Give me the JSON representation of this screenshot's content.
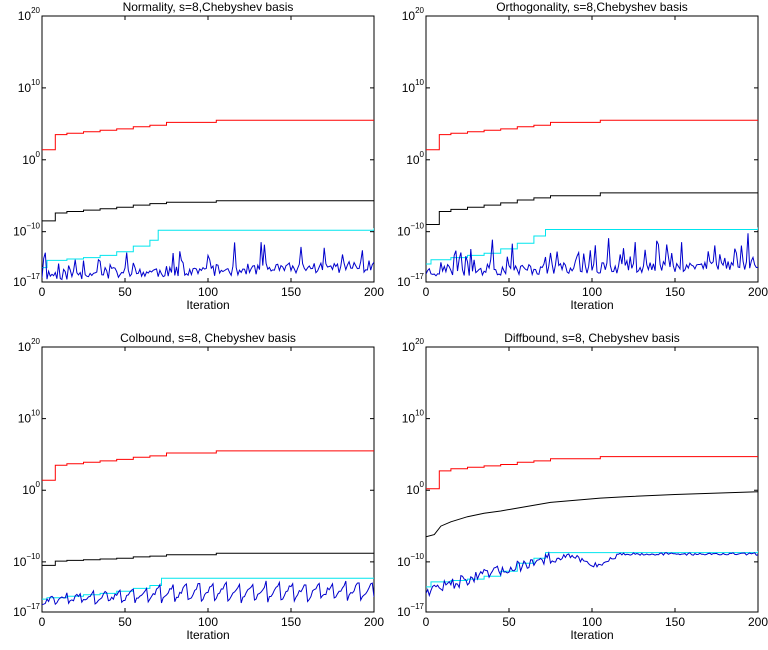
{
  "chart_data": [
    {
      "type": "line",
      "title": "Normality, s=8,Chebyshev basis",
      "xlabel": "Iteration",
      "ylabel": "",
      "xlim": [
        0,
        200
      ],
      "ylim_exponent": [
        -17,
        20
      ],
      "yscale": "log",
      "xticks": [
        "0",
        "50",
        "100",
        "150",
        "200"
      ],
      "yticks": [
        {
          "base": "10",
          "exp": "20"
        },
        {
          "base": "10",
          "exp": "10"
        },
        {
          "base": "10",
          "exp": "0"
        },
        {
          "base": "10",
          "exp": "−10"
        },
        {
          "base": "10",
          "exp": "−17"
        }
      ],
      "series": [
        {
          "color": "#ff0000",
          "style": "step",
          "points": [
            [
              0,
              1.4
            ],
            [
              8,
              1.4
            ],
            [
              8,
              3.5
            ],
            [
              15,
              3.7
            ],
            [
              25,
              3.9
            ],
            [
              35,
              4.1
            ],
            [
              45,
              4.3
            ],
            [
              55,
              4.6
            ],
            [
              65,
              4.8
            ],
            [
              75,
              5.2
            ],
            [
              90,
              5.2
            ],
            [
              105,
              5.5
            ],
            [
              200,
              5.5
            ]
          ]
        },
        {
          "color": "#000000",
          "style": "step",
          "points": [
            [
              0,
              -8.5
            ],
            [
              8,
              -8.5
            ],
            [
              8,
              -7.4
            ],
            [
              15,
              -7.2
            ],
            [
              25,
              -7.0
            ],
            [
              35,
              -6.8
            ],
            [
              45,
              -6.6
            ],
            [
              55,
              -6.3
            ],
            [
              65,
              -6.1
            ],
            [
              75,
              -5.9
            ],
            [
              90,
              -5.9
            ],
            [
              105,
              -5.7
            ],
            [
              200,
              -5.7
            ]
          ]
        },
        {
          "color": "#00e5ee",
          "style": "step",
          "points": [
            [
              0,
              -15.0
            ],
            [
              3,
              -14.0
            ],
            [
              15,
              -13.8
            ],
            [
              25,
              -13.6
            ],
            [
              35,
              -13.3
            ],
            [
              45,
              -12.8
            ],
            [
              55,
              -12.0
            ],
            [
              65,
              -11.2
            ],
            [
              70,
              -9.8
            ],
            [
              200,
              -9.5
            ]
          ]
        },
        {
          "color": "#0000cc",
          "style": "noisy",
          "seed": 11,
          "start": 0,
          "base_start": -16.0,
          "base_end": -14.8,
          "spike": 3.5,
          "spike_every": 6
        }
      ]
    },
    {
      "type": "line",
      "title": "Orthogonality, s=8,Chebyshev basis",
      "xlabel": "Iteration",
      "ylabel": "",
      "xlim": [
        0,
        200
      ],
      "ylim_exponent": [
        -17,
        20
      ],
      "yscale": "log",
      "xticks": [
        "0",
        "50",
        "100",
        "150",
        "200"
      ],
      "yticks": [
        {
          "base": "10",
          "exp": "20"
        },
        {
          "base": "10",
          "exp": "10"
        },
        {
          "base": "10",
          "exp": "0"
        },
        {
          "base": "10",
          "exp": "−10"
        },
        {
          "base": "10",
          "exp": "−17"
        }
      ],
      "series": [
        {
          "color": "#ff0000",
          "style": "step",
          "points": [
            [
              0,
              1.4
            ],
            [
              8,
              1.4
            ],
            [
              8,
              3.5
            ],
            [
              15,
              3.7
            ],
            [
              25,
              3.9
            ],
            [
              35,
              4.1
            ],
            [
              45,
              4.3
            ],
            [
              55,
              4.6
            ],
            [
              65,
              4.8
            ],
            [
              75,
              5.2
            ],
            [
              90,
              5.2
            ],
            [
              105,
              5.5
            ],
            [
              200,
              5.5
            ]
          ]
        },
        {
          "color": "#000000",
          "style": "step",
          "points": [
            [
              0,
              -9.0
            ],
            [
              8,
              -9.0
            ],
            [
              8,
              -7.2
            ],
            [
              15,
              -6.9
            ],
            [
              25,
              -6.6
            ],
            [
              35,
              -6.3
            ],
            [
              45,
              -6.0
            ],
            [
              55,
              -5.6
            ],
            [
              65,
              -5.3
            ],
            [
              75,
              -5.0
            ],
            [
              90,
              -5.0
            ],
            [
              105,
              -4.6
            ],
            [
              200,
              -4.6
            ]
          ]
        },
        {
          "color": "#00e5ee",
          "style": "step",
          "points": [
            [
              0,
              -14.5
            ],
            [
              3,
              -13.9
            ],
            [
              15,
              -13.6
            ],
            [
              25,
              -13.3
            ],
            [
              35,
              -13.0
            ],
            [
              45,
              -12.4
            ],
            [
              55,
              -11.6
            ],
            [
              65,
              -10.6
            ],
            [
              72,
              -9.7
            ],
            [
              200,
              -9.4
            ]
          ]
        },
        {
          "color": "#0000cc",
          "style": "noisy",
          "seed": 23,
          "start": 0,
          "base_start": -15.5,
          "base_end": -14.6,
          "spike": 3.8,
          "spike_every": 5
        }
      ]
    },
    {
      "type": "line",
      "title": "Colbound, s=8, Chebyshev basis",
      "xlabel": "Iteration",
      "ylabel": "",
      "xlim": [
        0,
        200
      ],
      "ylim_exponent": [
        -17,
        20
      ],
      "yscale": "log",
      "xticks": [
        "0",
        "50",
        "100",
        "150",
        "200"
      ],
      "yticks": [
        {
          "base": "10",
          "exp": "20"
        },
        {
          "base": "10",
          "exp": "10"
        },
        {
          "base": "10",
          "exp": "0"
        },
        {
          "base": "10",
          "exp": "−10"
        },
        {
          "base": "10",
          "exp": "−17"
        }
      ],
      "series": [
        {
          "color": "#ff0000",
          "style": "step",
          "points": [
            [
              0,
              1.4
            ],
            [
              8,
              1.4
            ],
            [
              8,
              3.5
            ],
            [
              15,
              3.7
            ],
            [
              25,
              3.9
            ],
            [
              35,
              4.1
            ],
            [
              45,
              4.3
            ],
            [
              55,
              4.6
            ],
            [
              65,
              4.8
            ],
            [
              75,
              5.2
            ],
            [
              90,
              5.2
            ],
            [
              105,
              5.5
            ],
            [
              200,
              5.5
            ]
          ]
        },
        {
          "color": "#000000",
          "style": "step",
          "points": [
            [
              0,
              -10.5
            ],
            [
              8,
              -10.5
            ],
            [
              8,
              -9.9
            ],
            [
              15,
              -9.8
            ],
            [
              25,
              -9.7
            ],
            [
              35,
              -9.6
            ],
            [
              45,
              -9.5
            ],
            [
              55,
              -9.3
            ],
            [
              65,
              -9.2
            ],
            [
              75,
              -9.0
            ],
            [
              90,
              -9.0
            ],
            [
              105,
              -8.8
            ],
            [
              200,
              -8.8
            ]
          ]
        },
        {
          "color": "#00e5ee",
          "style": "step",
          "points": [
            [
              0,
              -15.2
            ],
            [
              3,
              -15.0
            ],
            [
              15,
              -14.8
            ],
            [
              25,
              -14.6
            ],
            [
              35,
              -14.4
            ],
            [
              45,
              -14.1
            ],
            [
              55,
              -13.7
            ],
            [
              65,
              -13.3
            ],
            [
              72,
              -12.3
            ],
            [
              200,
              -12.2
            ]
          ]
        },
        {
          "color": "#0000cc",
          "style": "sawtooth",
          "seed": 31,
          "start": 0,
          "base_start": -15.8,
          "base_end": -15.2,
          "peak_start": -14.8,
          "peak_end": -12.6,
          "period": 8
        }
      ]
    },
    {
      "type": "line",
      "title": "Diffbound, s=8, Chebyshev basis",
      "xlabel": "Iteration",
      "ylabel": "",
      "xlim": [
        0,
        200
      ],
      "ylim_exponent": [
        -17,
        20
      ],
      "yscale": "log",
      "xticks": [
        "0",
        "50",
        "100",
        "150",
        "200"
      ],
      "yticks": [
        {
          "base": "10",
          "exp": "20"
        },
        {
          "base": "10",
          "exp": "10"
        },
        {
          "base": "10",
          "exp": "0"
        },
        {
          "base": "10",
          "exp": "−10"
        },
        {
          "base": "10",
          "exp": "−17"
        }
      ],
      "series": [
        {
          "color": "#ff0000",
          "style": "step",
          "points": [
            [
              0,
              0.2
            ],
            [
              8,
              0.2
            ],
            [
              8,
              2.7
            ],
            [
              15,
              3.0
            ],
            [
              25,
              3.2
            ],
            [
              35,
              3.4
            ],
            [
              45,
              3.6
            ],
            [
              55,
              3.9
            ],
            [
              65,
              4.1
            ],
            [
              75,
              4.4
            ],
            [
              90,
              4.4
            ],
            [
              105,
              4.7
            ],
            [
              200,
              4.7
            ]
          ]
        },
        {
          "color": "#000000",
          "style": "curve",
          "points": [
            [
              0,
              -6.5
            ],
            [
              5,
              -6.2
            ],
            [
              9,
              -5.0
            ],
            [
              15,
              -4.4
            ],
            [
              25,
              -3.7
            ],
            [
              35,
              -3.2
            ],
            [
              45,
              -2.9
            ],
            [
              55,
              -2.5
            ],
            [
              65,
              -2.1
            ],
            [
              75,
              -1.7
            ],
            [
              90,
              -1.4
            ],
            [
              105,
              -1.1
            ],
            [
              120,
              -0.9
            ],
            [
              150,
              -0.6
            ],
            [
              175,
              -0.4
            ],
            [
              200,
              -0.2
            ]
          ]
        },
        {
          "color": "#00e5ee",
          "style": "step",
          "points": [
            [
              0,
              -13.5
            ],
            [
              3,
              -12.8
            ],
            [
              15,
              -12.6
            ],
            [
              25,
              -12.4
            ],
            [
              35,
              -12.0
            ],
            [
              45,
              -11.3
            ],
            [
              55,
              -10.2
            ],
            [
              65,
              -9.5
            ],
            [
              72,
              -8.7
            ],
            [
              200,
              -8.5
            ]
          ]
        },
        {
          "color": "#0000cc",
          "style": "diffbound",
          "seed": 47,
          "start": 0
        }
      ]
    }
  ]
}
